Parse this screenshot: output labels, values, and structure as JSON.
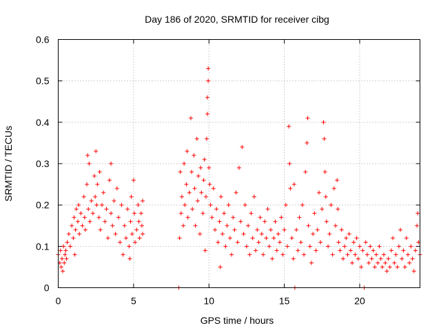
{
  "chart_data": {
    "type": "scatter",
    "title": "Day 186 of 2020, SRMTID for receiver cibg",
    "xlabel": "GPS time / hours",
    "ylabel": "SRMTID / TECUs",
    "xlim": [
      0,
      24
    ],
    "ylim": [
      0,
      0.6
    ],
    "xticks": [
      0,
      5,
      10,
      15,
      20
    ],
    "xtick_labels": [
      "0",
      "5",
      "10",
      "15",
      "20"
    ],
    "yticks": [
      0,
      0.1,
      0.2,
      0.3,
      0.4,
      0.5,
      0.6
    ],
    "ytick_labels": [
      "0",
      "0.1",
      "0.2",
      "0.3",
      "0.4",
      "0.5",
      "0.6"
    ],
    "grid": true,
    "marker": "+",
    "color": "#ff0000",
    "series": [
      {
        "name": "SRMTID",
        "points": [
          [
            0.0,
            0.08
          ],
          [
            0.1,
            0.06
          ],
          [
            0.15,
            0.09
          ],
          [
            0.2,
            0.05
          ],
          [
            0.25,
            0.07
          ],
          [
            0.3,
            0.04
          ],
          [
            0.35,
            0.1
          ],
          [
            0.4,
            0.06
          ],
          [
            0.45,
            0.08
          ],
          [
            0.5,
            0.09
          ],
          [
            0.55,
            0.07
          ],
          [
            0.6,
            0.11
          ],
          [
            0.7,
            0.13
          ],
          [
            0.8,
            0.1
          ],
          [
            0.9,
            0.15
          ],
          [
            1.0,
            0.12
          ],
          [
            1.05,
            0.17
          ],
          [
            1.1,
            0.08
          ],
          [
            1.15,
            0.14
          ],
          [
            1.2,
            0.19
          ],
          [
            1.3,
            0.16
          ],
          [
            1.35,
            0.2
          ],
          [
            1.4,
            0.13
          ],
          [
            1.5,
            0.18
          ],
          [
            1.6,
            0.15
          ],
          [
            1.7,
            0.22
          ],
          [
            1.75,
            0.17
          ],
          [
            1.8,
            0.14
          ],
          [
            1.9,
            0.25
          ],
          [
            1.95,
            0.32
          ],
          [
            2.0,
            0.19
          ],
          [
            2.05,
            0.3
          ],
          [
            2.1,
            0.16
          ],
          [
            2.2,
            0.21
          ],
          [
            2.3,
            0.18
          ],
          [
            2.4,
            0.27
          ],
          [
            2.45,
            0.22
          ],
          [
            2.5,
            0.33
          ],
          [
            2.55,
            0.2
          ],
          [
            2.6,
            0.25
          ],
          [
            2.7,
            0.17
          ],
          [
            2.75,
            0.28
          ],
          [
            2.8,
            0.14
          ],
          [
            2.9,
            0.2
          ],
          [
            3.0,
            0.23
          ],
          [
            3.1,
            0.16
          ],
          [
            3.2,
            0.19
          ],
          [
            3.3,
            0.12
          ],
          [
            3.4,
            0.26
          ],
          [
            3.5,
            0.18
          ],
          [
            3.5,
            0.3
          ],
          [
            3.6,
            0.15
          ],
          [
            3.7,
            0.21
          ],
          [
            3.8,
            0.13
          ],
          [
            3.9,
            0.24
          ],
          [
            4.0,
            0.17
          ],
          [
            4.1,
            0.11
          ],
          [
            4.2,
            0.2
          ],
          [
            4.3,
            0.08
          ],
          [
            4.4,
            0.15
          ],
          [
            4.5,
            0.12
          ],
          [
            4.6,
            0.19
          ],
          [
            4.7,
            0.1
          ],
          [
            4.75,
            0.07
          ],
          [
            4.8,
            0.16
          ],
          [
            4.85,
            0.22
          ],
          [
            4.9,
            0.13
          ],
          [
            5.0,
            0.26
          ],
          [
            5.05,
            0.18
          ],
          [
            5.1,
            0.11
          ],
          [
            5.2,
            0.14
          ],
          [
            5.3,
            0.2
          ],
          [
            5.35,
            0.16
          ],
          [
            5.4,
            0.12
          ],
          [
            5.5,
            0.18
          ],
          [
            5.55,
            0.15
          ],
          [
            5.6,
            0.21
          ],
          [
            5.6,
            0.13
          ],
          [
            8.0,
            0.0
          ],
          [
            8.05,
            0.12
          ],
          [
            8.1,
            0.28
          ],
          [
            8.15,
            0.18
          ],
          [
            8.2,
            0.22
          ],
          [
            8.3,
            0.15
          ],
          [
            8.35,
            0.3
          ],
          [
            8.4,
            0.2
          ],
          [
            8.5,
            0.25
          ],
          [
            8.55,
            0.33
          ],
          [
            8.6,
            0.17
          ],
          [
            8.7,
            0.23
          ],
          [
            8.8,
            0.41
          ],
          [
            8.85,
            0.28
          ],
          [
            8.9,
            0.19
          ],
          [
            9.0,
            0.32
          ],
          [
            9.05,
            0.24
          ],
          [
            9.1,
            0.15
          ],
          [
            9.2,
            0.36
          ],
          [
            9.25,
            0.21
          ],
          [
            9.3,
            0.27
          ],
          [
            9.4,
            0.13
          ],
          [
            9.45,
            0.29
          ],
          [
            9.5,
            0.23
          ],
          [
            9.6,
            0.18
          ],
          [
            9.65,
            0.26
          ],
          [
            9.7,
            0.31
          ],
          [
            9.75,
            0.09
          ],
          [
            9.8,
            0.22
          ],
          [
            9.85,
            0.36
          ],
          [
            9.9,
            0.42
          ],
          [
            9.9,
            0.46
          ],
          [
            9.95,
            0.5
          ],
          [
            9.95,
            0.53
          ],
          [
            10.0,
            0.29
          ],
          [
            10.05,
            0.25
          ],
          [
            10.1,
            0.2
          ],
          [
            10.2,
            0.17
          ],
          [
            10.3,
            0.24
          ],
          [
            10.4,
            0.14
          ],
          [
            10.5,
            0.19
          ],
          [
            10.6,
            0.11
          ],
          [
            10.7,
            0.16
          ],
          [
            10.75,
            0.05
          ],
          [
            10.8,
            0.22
          ],
          [
            10.9,
            0.13
          ],
          [
            11.0,
            0.18
          ],
          [
            11.1,
            0.1
          ],
          [
            11.2,
            0.15
          ],
          [
            11.3,
            0.2
          ],
          [
            11.4,
            0.12
          ],
          [
            11.5,
            0.08
          ],
          [
            11.6,
            0.17
          ],
          [
            11.7,
            0.14
          ],
          [
            11.8,
            0.23
          ],
          [
            11.9,
            0.11
          ],
          [
            12.0,
            0.29
          ],
          [
            12.1,
            0.16
          ],
          [
            12.2,
            0.34
          ],
          [
            12.3,
            0.13
          ],
          [
            12.4,
            0.2
          ],
          [
            12.5,
            0.1
          ],
          [
            12.6,
            0.15
          ],
          [
            12.7,
            0.08
          ],
          [
            12.8,
            0.18
          ],
          [
            12.9,
            0.12
          ],
          [
            13.0,
            0.22
          ],
          [
            13.1,
            0.09
          ],
          [
            13.2,
            0.14
          ],
          [
            13.3,
            0.11
          ],
          [
            13.4,
            0.17
          ],
          [
            13.5,
            0.13
          ],
          [
            13.6,
            0.08
          ],
          [
            13.7,
            0.16
          ],
          [
            13.8,
            0.12
          ],
          [
            13.9,
            0.19
          ],
          [
            14.0,
            0.1
          ],
          [
            14.1,
            0.14
          ],
          [
            14.2,
            0.07
          ],
          [
            14.3,
            0.12
          ],
          [
            14.4,
            0.16
          ],
          [
            14.5,
            0.09
          ],
          [
            14.6,
            0.13
          ],
          [
            14.7,
            0.11
          ],
          [
            14.8,
            0.17
          ],
          [
            14.9,
            0.08
          ],
          [
            15.0,
            0.14
          ],
          [
            15.1,
            0.2
          ],
          [
            15.2,
            0.1
          ],
          [
            15.3,
            0.39
          ],
          [
            15.35,
            0.3
          ],
          [
            15.4,
            0.24
          ],
          [
            15.5,
            0.12
          ],
          [
            15.6,
            0.07
          ],
          [
            15.65,
            0.25
          ],
          [
            15.7,
            0.0
          ],
          [
            15.8,
            0.14
          ],
          [
            15.9,
            0.09
          ],
          [
            16.0,
            0.17
          ],
          [
            16.1,
            0.11
          ],
          [
            16.2,
            0.2
          ],
          [
            16.3,
            0.08
          ],
          [
            16.4,
            0.28
          ],
          [
            16.5,
            0.35
          ],
          [
            16.55,
            0.41
          ],
          [
            16.6,
            0.15
          ],
          [
            16.7,
            0.1
          ],
          [
            16.8,
            0.06
          ],
          [
            16.9,
            0.13
          ],
          [
            17.0,
            0.18
          ],
          [
            17.1,
            0.09
          ],
          [
            17.2,
            0.14
          ],
          [
            17.3,
            0.23
          ],
          [
            17.4,
            0.11
          ],
          [
            17.5,
            0.19
          ],
          [
            17.6,
            0.4
          ],
          [
            17.65,
            0.36
          ],
          [
            17.7,
            0.28
          ],
          [
            17.75,
            0.22
          ],
          [
            17.8,
            0.16
          ],
          [
            17.9,
            0.1
          ],
          [
            18.0,
            0.13
          ],
          [
            18.1,
            0.2
          ],
          [
            18.2,
            0.08
          ],
          [
            18.3,
            0.24
          ],
          [
            18.4,
            0.15
          ],
          [
            18.5,
            0.26
          ],
          [
            18.55,
            0.19
          ],
          [
            18.6,
            0.11
          ],
          [
            18.7,
            0.09
          ],
          [
            18.8,
            0.14
          ],
          [
            18.9,
            0.07
          ],
          [
            19.0,
            0.1
          ],
          [
            19.1,
            0.12
          ],
          [
            19.2,
            0.08
          ],
          [
            19.3,
            0.13
          ],
          [
            19.4,
            0.09
          ],
          [
            19.5,
            0.06
          ],
          [
            19.6,
            0.11
          ],
          [
            19.7,
            0.08
          ],
          [
            19.8,
            0.12
          ],
          [
            19.9,
            0.07
          ],
          [
            20.0,
            0.1
          ],
          [
            20.1,
            0.05
          ],
          [
            20.2,
            0.09
          ],
          [
            20.3,
            0.0
          ],
          [
            20.4,
            0.11
          ],
          [
            20.5,
            0.08
          ],
          [
            20.6,
            0.06
          ],
          [
            20.7,
            0.1
          ],
          [
            20.8,
            0.07
          ],
          [
            20.9,
            0.09
          ],
          [
            21.0,
            0.05
          ],
          [
            21.1,
            0.08
          ],
          [
            21.2,
            0.06
          ],
          [
            21.3,
            0.1
          ],
          [
            21.4,
            0.07
          ],
          [
            21.5,
            0.05
          ],
          [
            21.6,
            0.08
          ],
          [
            21.7,
            0.06
          ],
          [
            21.8,
            0.04
          ],
          [
            21.9,
            0.07
          ],
          [
            22.0,
            0.05
          ],
          [
            22.1,
            0.09
          ],
          [
            22.2,
            0.12
          ],
          [
            22.3,
            0.06
          ],
          [
            22.4,
            0.08
          ],
          [
            22.5,
            0.05
          ],
          [
            22.6,
            0.1
          ],
          [
            22.7,
            0.14
          ],
          [
            22.8,
            0.07
          ],
          [
            22.9,
            0.09
          ],
          [
            23.0,
            0.05
          ],
          [
            23.1,
            0.12
          ],
          [
            23.2,
            0.08
          ],
          [
            23.3,
            0.06
          ],
          [
            23.4,
            0.1
          ],
          [
            23.5,
            0.07
          ],
          [
            23.6,
            0.04
          ],
          [
            23.7,
            0.09
          ],
          [
            23.8,
            0.15
          ],
          [
            23.85,
            0.18
          ],
          [
            23.9,
            0.11
          ],
          [
            24.0,
            0.08
          ]
        ]
      }
    ]
  }
}
